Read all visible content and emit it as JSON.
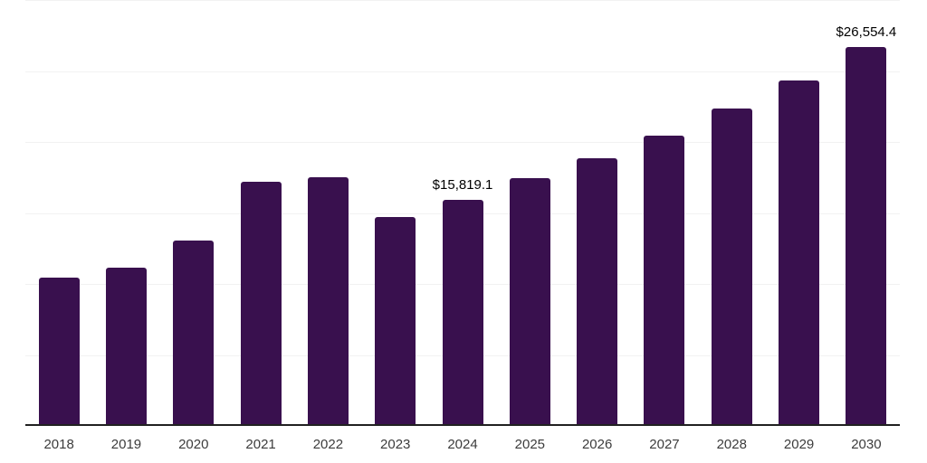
{
  "chart": {
    "background": "#ffffff",
    "bar_color": "#39104E",
    "grid_color": "#f2f2f2",
    "axis_line_color": "#212121",
    "tick_label_color": "#3c3c3c",
    "data_label_color": "#000000"
  },
  "chart_data": {
    "type": "bar",
    "title": "",
    "xlabel": "",
    "ylabel": "",
    "categories": [
      "2018",
      "2019",
      "2020",
      "2021",
      "2022",
      "2023",
      "2024",
      "2025",
      "2026",
      "2027",
      "2028",
      "2029",
      "2030"
    ],
    "values": [
      10300,
      11000,
      12900,
      17100,
      17400,
      14600,
      15819.1,
      17300,
      18700,
      20300,
      22200,
      24200,
      26554.4
    ],
    "ylim": [
      0,
      30000
    ],
    "grid_interval": 5000,
    "grid": true,
    "legend_position": "none",
    "data_labels": [
      {
        "index": 6,
        "text": "$15,819.1"
      },
      {
        "index": 12,
        "text": "$26,554.4"
      }
    ]
  }
}
